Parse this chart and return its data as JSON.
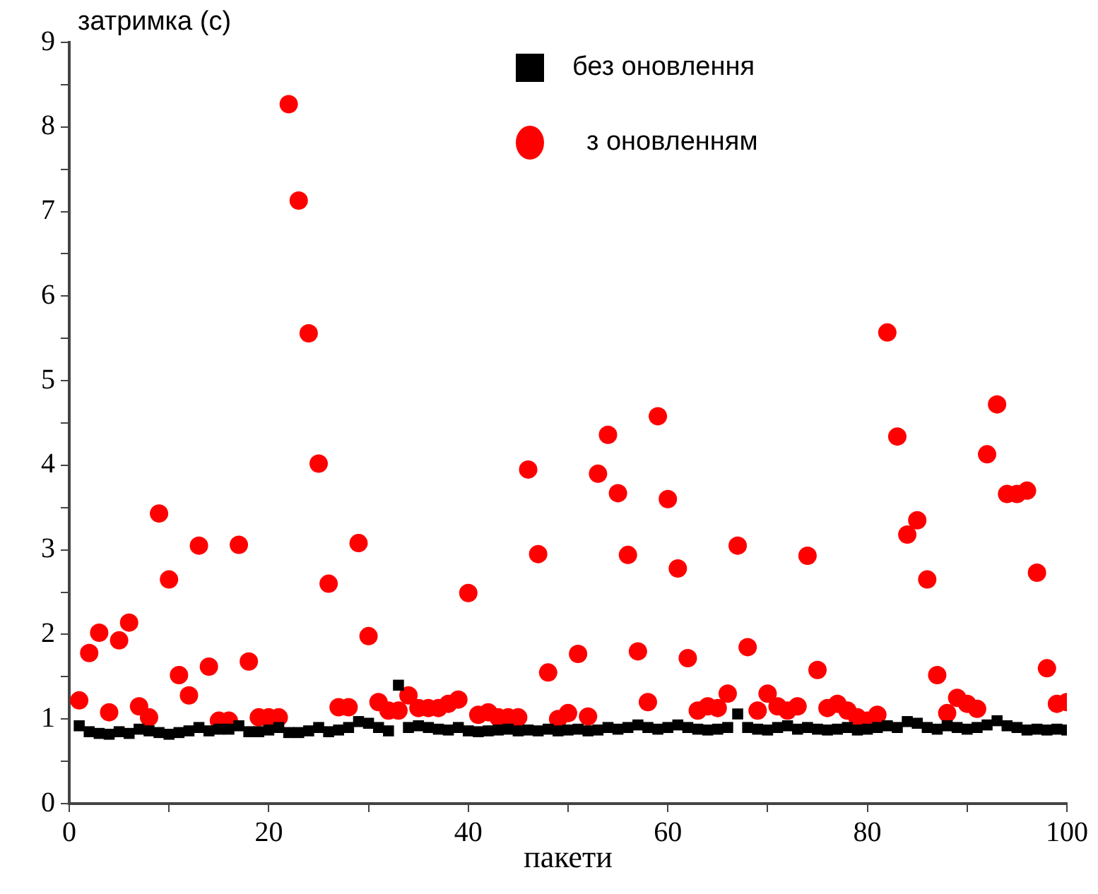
{
  "chart_data": {
    "type": "scatter",
    "ylabel": "затримка (с)",
    "xlabel": "пакети",
    "xlim": [
      0,
      100
    ],
    "ylim": [
      0,
      9
    ],
    "xticks": [
      0,
      {
        "value": 10,
        "label": null
      },
      20,
      {
        "value": 30,
        "label": null
      },
      40,
      {
        "value": 50,
        "label": null
      },
      60,
      {
        "value": 70,
        "label": null
      },
      80,
      {
        "value": 90,
        "label": null
      },
      100
    ],
    "yticks": [
      0,
      {
        "value": 0.5,
        "label": null
      },
      1,
      {
        "value": 1.5,
        "label": null
      },
      2,
      {
        "value": 2.5,
        "label": null
      },
      3,
      {
        "value": 3.5,
        "label": null
      },
      4,
      {
        "value": 4.5,
        "label": null
      },
      5,
      {
        "value": 5.5,
        "label": null
      },
      6,
      {
        "value": 6.5,
        "label": null
      },
      7,
      {
        "value": 7.5,
        "label": null
      },
      8,
      {
        "value": 8.5,
        "label": null
      },
      9
    ],
    "grid": false,
    "legend": "top",
    "x": [
      1,
      2,
      3,
      4,
      5,
      6,
      7,
      8,
      9,
      10,
      11,
      12,
      13,
      14,
      15,
      16,
      17,
      18,
      19,
      20,
      21,
      22,
      23,
      24,
      25,
      26,
      27,
      28,
      29,
      30,
      31,
      32,
      33,
      34,
      35,
      36,
      37,
      38,
      39,
      40,
      41,
      42,
      43,
      44,
      45,
      46,
      47,
      48,
      49,
      50,
      51,
      52,
      53,
      54,
      55,
      56,
      57,
      58,
      59,
      60,
      61,
      62,
      63,
      64,
      65,
      66,
      67,
      68,
      69,
      70,
      71,
      72,
      73,
      74,
      75,
      76,
      77,
      78,
      79,
      80,
      81,
      82,
      83,
      84,
      85,
      86,
      87,
      88,
      89,
      90,
      91,
      92,
      93,
      94,
      95,
      96,
      97,
      98,
      99,
      100
    ],
    "series": [
      {
        "name": "без оновлення",
        "color": "#000000",
        "marker": "square",
        "values": [
          0.92,
          0.85,
          0.83,
          0.82,
          0.85,
          0.83,
          0.88,
          0.86,
          0.84,
          0.82,
          0.84,
          0.86,
          0.9,
          0.86,
          0.88,
          0.88,
          0.92,
          0.85,
          0.85,
          0.87,
          0.9,
          0.84,
          0.84,
          0.86,
          0.9,
          0.85,
          0.87,
          0.9,
          0.97,
          0.95,
          0.9,
          0.86,
          1.4,
          0.9,
          0.92,
          0.9,
          0.88,
          0.87,
          0.9,
          0.86,
          0.85,
          0.86,
          0.87,
          0.88,
          0.86,
          0.87,
          0.86,
          0.88,
          0.86,
          0.87,
          0.88,
          0.86,
          0.87,
          0.9,
          0.88,
          0.9,
          0.93,
          0.9,
          0.88,
          0.9,
          0.93,
          0.9,
          0.88,
          0.87,
          0.88,
          0.9,
          1.06,
          0.9,
          0.88,
          0.87,
          0.9,
          0.92,
          0.88,
          0.9,
          0.88,
          0.87,
          0.88,
          0.9,
          0.87,
          0.88,
          0.9,
          0.92,
          0.9,
          0.97,
          0.95,
          0.9,
          0.88,
          0.92,
          0.9,
          0.88,
          0.9,
          0.93,
          0.98,
          0.92,
          0.9,
          0.87,
          0.88,
          0.87,
          0.88,
          0.87
        ]
      },
      {
        "name": "з оновленням",
        "color": "#ff0000",
        "marker": "circle",
        "values": [
          1.22,
          1.78,
          2.02,
          1.08,
          1.93,
          2.14,
          1.15,
          1.02,
          3.43,
          2.65,
          1.52,
          1.28,
          3.05,
          1.62,
          0.98,
          0.98,
          3.06,
          1.68,
          1.02,
          1.02,
          1.02,
          8.27,
          7.13,
          5.56,
          4.02,
          2.6,
          1.14,
          1.14,
          3.08,
          1.98,
          1.2,
          1.1,
          1.1,
          1.28,
          1.13,
          1.13,
          1.13,
          1.18,
          1.23,
          2.49,
          1.05,
          1.08,
          1.02,
          1.02,
          1.02,
          3.95,
          2.95,
          1.55,
          1.0,
          1.07,
          1.77,
          1.03,
          3.9,
          4.36,
          3.67,
          2.94,
          1.8,
          1.2,
          4.58,
          3.6,
          2.78,
          1.72,
          1.1,
          1.15,
          1.13,
          1.3,
          3.05,
          1.85,
          1.1,
          1.3,
          1.15,
          1.1,
          1.15,
          2.93,
          1.58,
          1.13,
          1.18,
          1.1,
          1.02,
          0.98,
          1.05,
          5.57,
          4.34,
          3.18,
          3.35,
          2.65,
          1.52,
          1.07,
          1.25,
          1.18,
          1.12,
          4.13,
          4.72,
          3.66,
          3.66,
          3.7,
          2.73,
          1.6,
          1.18,
          1.2
        ]
      }
    ]
  }
}
